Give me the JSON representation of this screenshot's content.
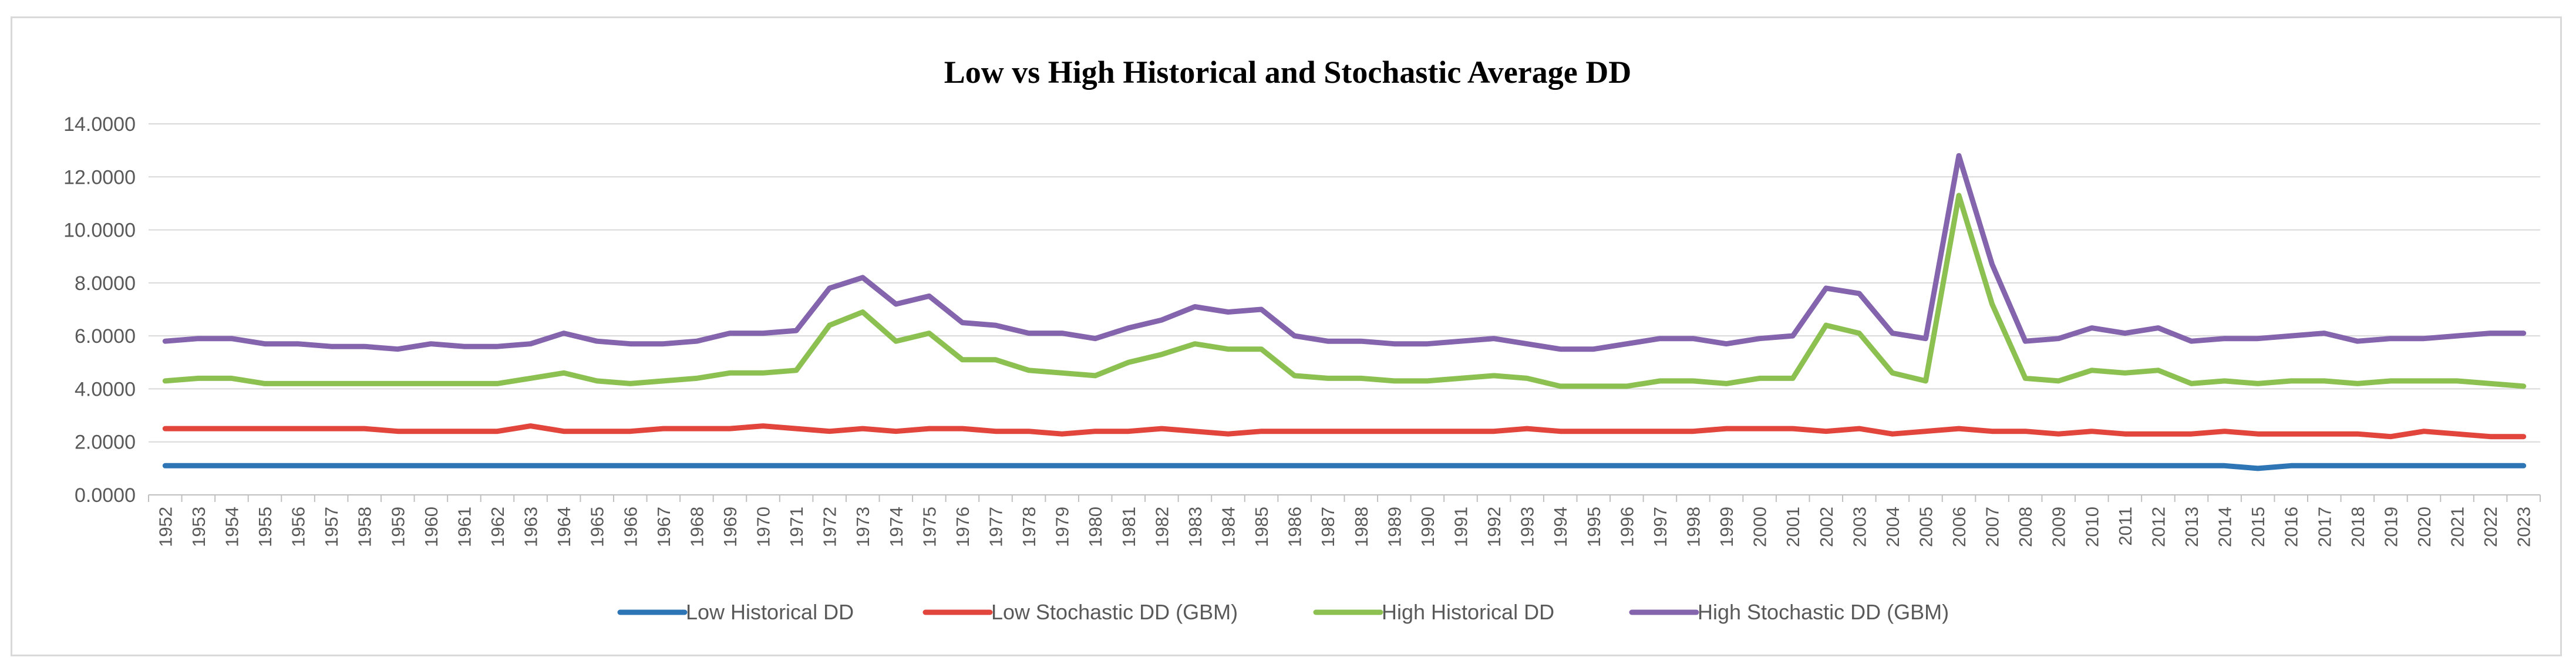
{
  "chart_data": {
    "type": "line",
    "title": "Low vs High Historical and Stochastic Average DD",
    "xlabel": "",
    "ylabel": "",
    "ylim": [
      0,
      14
    ],
    "y_ticks": [
      0,
      2,
      4,
      6,
      8,
      10,
      12,
      14
    ],
    "y_tick_labels": [
      "0.0000",
      "2.0000",
      "4.0000",
      "6.0000",
      "8.0000",
      "10.0000",
      "12.0000",
      "14.0000"
    ],
    "grid": true,
    "legend_position": "bottom",
    "categories": [
      "1952",
      "1953",
      "1954",
      "1955",
      "1956",
      "1957",
      "1958",
      "1959",
      "1960",
      "1961",
      "1962",
      "1963",
      "1964",
      "1965",
      "1966",
      "1967",
      "1968",
      "1969",
      "1970",
      "1971",
      "1972",
      "1973",
      "1974",
      "1975",
      "1976",
      "1977",
      "1978",
      "1979",
      "1980",
      "1981",
      "1982",
      "1983",
      "1984",
      "1985",
      "1986",
      "1987",
      "1988",
      "1989",
      "1990",
      "1991",
      "1992",
      "1993",
      "1994",
      "1995",
      "1996",
      "1997",
      "1998",
      "1999",
      "2000",
      "2001",
      "2002",
      "2003",
      "2004",
      "2005",
      "2006",
      "2007",
      "2008",
      "2009",
      "2010",
      "2011",
      "2012",
      "2013",
      "2014",
      "2015",
      "2016",
      "2017",
      "2018",
      "2019",
      "2020",
      "2021",
      "2022",
      "2023"
    ],
    "series": [
      {
        "name": "Low Historical DD",
        "color": "#2e75b6",
        "values": [
          1.1,
          1.1,
          1.1,
          1.1,
          1.1,
          1.1,
          1.1,
          1.1,
          1.1,
          1.1,
          1.1,
          1.1,
          1.1,
          1.1,
          1.1,
          1.1,
          1.1,
          1.1,
          1.1,
          1.1,
          1.1,
          1.1,
          1.1,
          1.1,
          1.1,
          1.1,
          1.1,
          1.1,
          1.1,
          1.1,
          1.1,
          1.1,
          1.1,
          1.1,
          1.1,
          1.1,
          1.1,
          1.1,
          1.1,
          1.1,
          1.1,
          1.1,
          1.1,
          1.1,
          1.1,
          1.1,
          1.1,
          1.1,
          1.1,
          1.1,
          1.1,
          1.1,
          1.1,
          1.1,
          1.1,
          1.1,
          1.1,
          1.1,
          1.1,
          1.1,
          1.1,
          1.1,
          1.1,
          1.0,
          1.1,
          1.1,
          1.1,
          1.1,
          1.1,
          1.1,
          1.1,
          1.1
        ]
      },
      {
        "name": "Low Stochastic DD (GBM)",
        "color": "#e2453c",
        "values": [
          2.5,
          2.5,
          2.5,
          2.5,
          2.5,
          2.5,
          2.5,
          2.4,
          2.4,
          2.4,
          2.4,
          2.6,
          2.4,
          2.4,
          2.4,
          2.5,
          2.5,
          2.5,
          2.6,
          2.5,
          2.4,
          2.5,
          2.4,
          2.5,
          2.5,
          2.4,
          2.4,
          2.3,
          2.4,
          2.4,
          2.5,
          2.4,
          2.3,
          2.4,
          2.4,
          2.4,
          2.4,
          2.4,
          2.4,
          2.4,
          2.4,
          2.5,
          2.4,
          2.4,
          2.4,
          2.4,
          2.4,
          2.5,
          2.5,
          2.5,
          2.4,
          2.5,
          2.3,
          2.4,
          2.5,
          2.4,
          2.4,
          2.3,
          2.4,
          2.3,
          2.3,
          2.3,
          2.4,
          2.3,
          2.3,
          2.3,
          2.3,
          2.2,
          2.4,
          2.3,
          2.2,
          2.2
        ]
      },
      {
        "name": "High Historical DD",
        "color": "#8cc152",
        "values": [
          4.3,
          4.4,
          4.4,
          4.2,
          4.2,
          4.2,
          4.2,
          4.2,
          4.2,
          4.2,
          4.2,
          4.4,
          4.6,
          4.3,
          4.2,
          4.3,
          4.4,
          4.6,
          4.6,
          4.7,
          6.4,
          6.9,
          5.8,
          6.1,
          5.1,
          5.1,
          4.7,
          4.6,
          4.5,
          5.0,
          5.3,
          5.7,
          5.5,
          5.5,
          4.5,
          4.4,
          4.4,
          4.3,
          4.3,
          4.4,
          4.5,
          4.4,
          4.1,
          4.1,
          4.1,
          4.3,
          4.3,
          4.2,
          4.4,
          4.4,
          6.4,
          6.1,
          4.6,
          4.3,
          11.3,
          7.2,
          4.4,
          4.3,
          4.7,
          4.6,
          4.7,
          4.2,
          4.3,
          4.2,
          4.3,
          4.3,
          4.2,
          4.3,
          4.3,
          4.3,
          4.2,
          4.1
        ]
      },
      {
        "name": "High Stochastic DD (GBM)",
        "color": "#8364ad",
        "values": [
          5.8,
          5.9,
          5.9,
          5.7,
          5.7,
          5.6,
          5.6,
          5.5,
          5.7,
          5.6,
          5.6,
          5.7,
          6.1,
          5.8,
          5.7,
          5.7,
          5.8,
          6.1,
          6.1,
          6.2,
          7.8,
          8.2,
          7.2,
          7.5,
          6.5,
          6.4,
          6.1,
          6.1,
          5.9,
          6.3,
          6.6,
          7.1,
          6.9,
          7.0,
          6.0,
          5.8,
          5.8,
          5.7,
          5.7,
          5.8,
          5.9,
          5.7,
          5.5,
          5.5,
          5.7,
          5.9,
          5.9,
          5.7,
          5.9,
          6.0,
          7.8,
          7.6,
          6.1,
          5.9,
          12.8,
          8.7,
          5.8,
          5.9,
          6.3,
          6.1,
          6.3,
          5.8,
          5.9,
          5.9,
          6.0,
          6.1,
          5.8,
          5.9,
          5.9,
          6.0,
          6.1,
          6.1
        ]
      }
    ]
  }
}
